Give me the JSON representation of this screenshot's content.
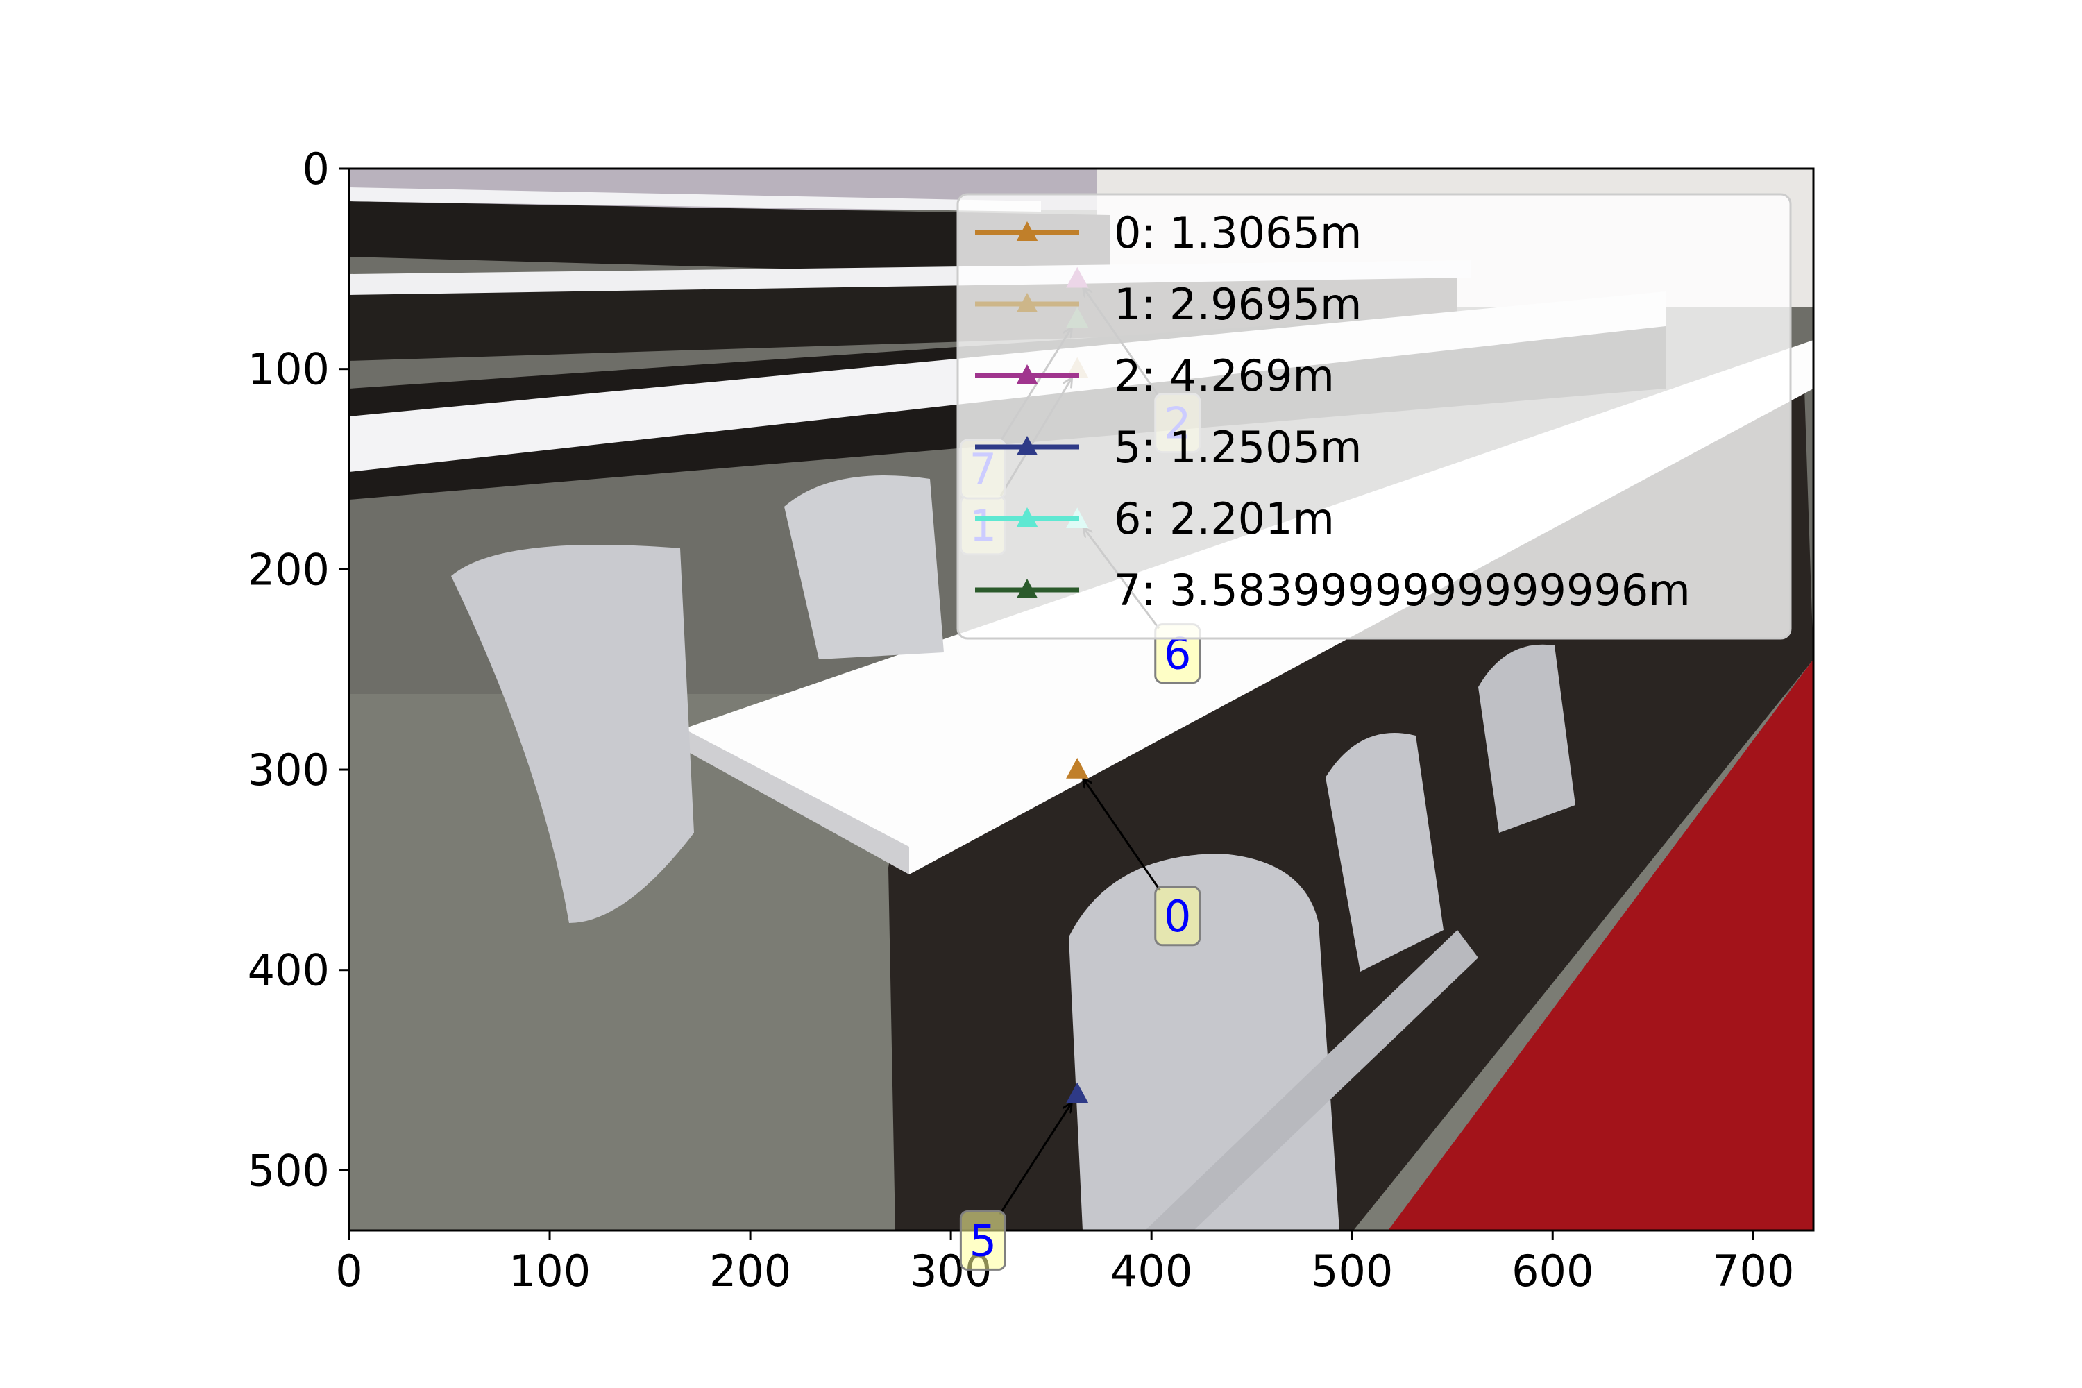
{
  "chart_data": {
    "type": "scatter",
    "title": "",
    "xlabel": "",
    "ylabel": "",
    "xlim": [
      0,
      730
    ],
    "ylim": [
      530,
      0
    ],
    "x_ticks": [
      "0",
      "100",
      "200",
      "300",
      "400",
      "500",
      "600",
      "700"
    ],
    "y_ticks": [
      "0",
      "100",
      "200",
      "300",
      "400",
      "500"
    ],
    "background": "photo of lecture hall desks and folding seats (rendered as stylized shapes)",
    "legend_placement": "upper-right",
    "points": [
      {
        "id": "0",
        "label": "0: 1.3065m",
        "x": 363,
        "y": 300,
        "color": "#c07f2a",
        "ann_x": 413,
        "ann_y": 373
      },
      {
        "id": "1",
        "label": "1: 2.9695m",
        "x": 363,
        "y": 100,
        "color": "#cdb689",
        "ann_x": 316,
        "ann_y": 178
      },
      {
        "id": "2",
        "label": "2: 4.269m",
        "x": 363,
        "y": 55,
        "color": "#a0358e",
        "ann_x": 413,
        "ann_y": 127
      },
      {
        "id": "5",
        "label": "5: 1.2505m",
        "x": 363,
        "y": 462,
        "color": "#2e3a87",
        "ann_x": 316,
        "ann_y": 535
      },
      {
        "id": "6",
        "label": "6: 2.201m",
        "x": 363,
        "y": 175,
        "color": "#5ee8d2",
        "ann_x": 413,
        "ann_y": 242
      },
      {
        "id": "7",
        "label": "7: 3.5839999999999996m",
        "x": 363,
        "y": 75,
        "color": "#2b5a2b",
        "ann_x": 316,
        "ann_y": 150
      }
    ]
  }
}
